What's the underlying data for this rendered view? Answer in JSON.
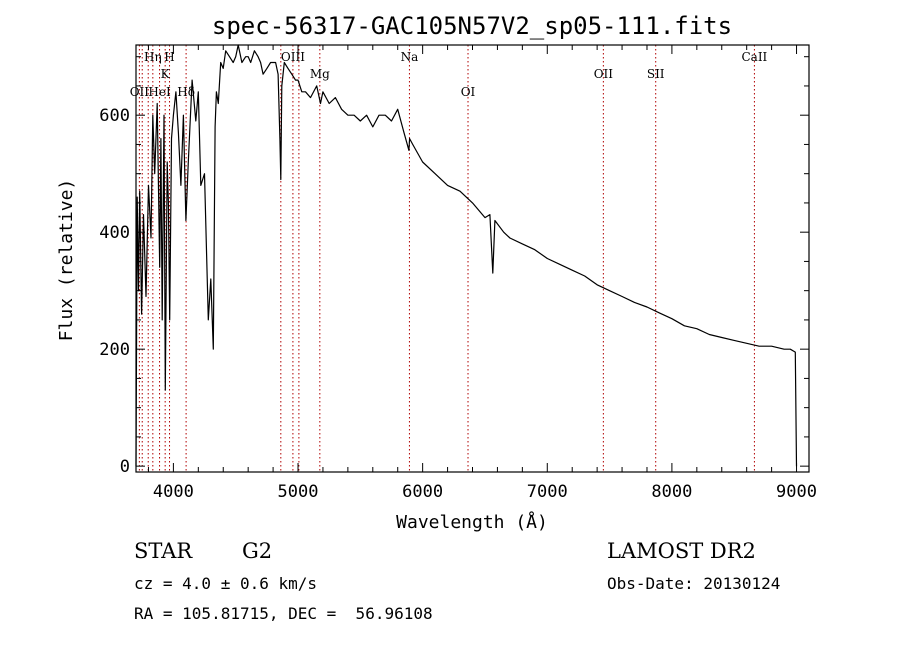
{
  "chart_data": {
    "type": "line",
    "title": "spec-56317-GAC105N57V2_sp05-111.fits",
    "xlabel": "Wavelength (Å)",
    "ylabel": "Flux (relative)",
    "xlim": [
      3700,
      9100
    ],
    "ylim": [
      -10,
      720
    ],
    "x_ticks": [
      4000,
      5000,
      6000,
      7000,
      8000,
      9000
    ],
    "y_ticks": [
      0,
      200,
      400,
      600
    ],
    "grid": false,
    "series": [
      {
        "name": "",
        "x": [
          3700,
          3710,
          3720,
          3730,
          3745,
          3760,
          3780,
          3800,
          3820,
          3835,
          3850,
          3870,
          3890,
          3900,
          3910,
          3925,
          3935,
          3950,
          3960,
          3970,
          3985,
          4000,
          4020,
          4040,
          4060,
          4080,
          4100,
          4120,
          4150,
          4180,
          4200,
          4220,
          4250,
          4280,
          4300,
          4320,
          4335,
          4345,
          4360,
          4380,
          4400,
          4420,
          4450,
          4480,
          4500,
          4520,
          4550,
          4580,
          4600,
          4620,
          4650,
          4680,
          4700,
          4720,
          4750,
          4780,
          4800,
          4820,
          4840,
          4855,
          4862,
          4870,
          4890,
          4920,
          4950,
          4980,
          5000,
          5030,
          5060,
          5100,
          5150,
          5180,
          5200,
          5250,
          5300,
          5350,
          5400,
          5450,
          5500,
          5550,
          5600,
          5650,
          5700,
          5750,
          5800,
          5850,
          5890,
          5895,
          5920,
          6000,
          6100,
          6200,
          6300,
          6400,
          6500,
          6540,
          6563,
          6580,
          6650,
          6700,
          6800,
          6900,
          7000,
          7100,
          7200,
          7300,
          7400,
          7500,
          7600,
          7700,
          7800,
          7900,
          8000,
          8100,
          8200,
          8300,
          8400,
          8500,
          8600,
          8700,
          8800,
          8900,
          8950,
          8990,
          9000
        ],
        "values": [
          0,
          460,
          300,
          470,
          260,
          430,
          290,
          480,
          390,
          600,
          500,
          620,
          340,
          560,
          250,
          600,
          130,
          520,
          450,
          250,
          560,
          600,
          640,
          570,
          480,
          600,
          420,
          520,
          660,
          590,
          640,
          480,
          500,
          250,
          320,
          200,
          580,
          640,
          620,
          690,
          680,
          710,
          700,
          690,
          700,
          720,
          690,
          700,
          700,
          690,
          710,
          700,
          690,
          670,
          680,
          690,
          690,
          690,
          670,
          560,
          490,
          650,
          690,
          680,
          670,
          660,
          660,
          640,
          640,
          630,
          650,
          620,
          640,
          620,
          630,
          610,
          600,
          600,
          590,
          600,
          580,
          600,
          600,
          590,
          610,
          570,
          540,
          560,
          550,
          520,
          500,
          480,
          470,
          450,
          425,
          430,
          330,
          420,
          400,
          390,
          380,
          370,
          355,
          345,
          335,
          325,
          310,
          300,
          290,
          280,
          272,
          262,
          252,
          240,
          235,
          225,
          220,
          215,
          210,
          205,
          205,
          200,
          200,
          195,
          0
        ]
      }
    ],
    "line_markers": [
      {
        "label": "OII",
        "x": 3727,
        "row": 3
      },
      {
        "label": "Hη",
        "x": 3835,
        "row": 1
      },
      {
        "label": "HeI",
        "x": 3889,
        "row": 3
      },
      {
        "label": "K",
        "x": 3934,
        "row": 2
      },
      {
        "label": "H",
        "x": 3969,
        "row": 1
      },
      {
        "label": "Hδ",
        "x": 4102,
        "row": 3
      },
      {
        "label": "OIII",
        "x": 4959,
        "row": 1
      },
      {
        "label": "Mg",
        "x": 5175,
        "row": 2
      },
      {
        "label": "Na",
        "x": 5894,
        "row": 1
      },
      {
        "label": "OI",
        "x": 6364,
        "row": 3
      },
      {
        "label": "OII",
        "x": 7450,
        "row": 2
      },
      {
        "label": "SII",
        "x": 7870,
        "row": 2
      },
      {
        "label": "CaII",
        "x": 8662,
        "row": 1
      }
    ],
    "extra_marker_lines": [
      3750,
      3798,
      4862,
      5007
    ]
  },
  "info": {
    "object_class": "STAR",
    "subclass": "G2",
    "survey": "LAMOST DR2",
    "redshift": "cz = 4.0 ± 0.6 km/s",
    "obs_date": "Obs-Date: 20130124",
    "coords": "RA = 105.81715, DEC =  56.96108"
  }
}
